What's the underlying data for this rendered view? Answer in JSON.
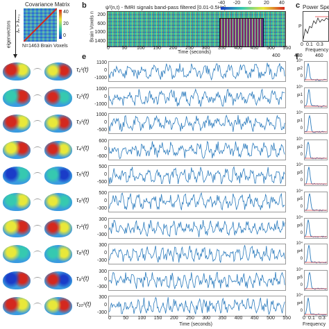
{
  "panels": {
    "b": "b",
    "c": "c",
    "e": "e",
    "f": "f"
  },
  "covariance": {
    "title": "Covariance Matrix",
    "footer": "N=1463 Brain Voxels",
    "colorbar_ticks": [
      "40",
      "20",
      "0"
    ],
    "eig_label": "eigenvectors",
    "lambda_label": "λₙ > λₙ₊₁"
  },
  "heatmap": {
    "title": "ψᶠ(n,t) - fMRI signals band-pass filtered [0.01-0.5Hz]",
    "ylabel": "Brain Voxels n",
    "yticks": [
      "200",
      "600",
      "1000",
      "1400"
    ],
    "xticks": [
      "0",
      "50",
      "100",
      "150",
      "200",
      "250",
      "300",
      "350",
      "400",
      "450",
      "500",
      "550"
    ],
    "xlabel": "Time (seconds)",
    "colorbar_ticks": [
      "-40",
      "-20",
      "0",
      "20",
      "40"
    ],
    "inset_xticks": [
      "400",
      "430",
      "460"
    ]
  },
  "power": {
    "title": "Power Spe",
    "axis_label": "P",
    "xlabel": "Frequency",
    "xticks": [
      "0",
      "0.1",
      "0.3"
    ],
    "bottom_xticks": [
      "0",
      "0.1",
      "0.3"
    ],
    "bottom_xlabel": "Frequency"
  },
  "components": {
    "xlabel": "Time (seconds)",
    "xticks": [
      "0",
      "50",
      "100",
      "150",
      "200",
      "250",
      "300",
      "350",
      "400",
      "450",
      "500",
      "550"
    ],
    "rows": [
      {
        "label": "τ₁ˢ(t)",
        "ticks": [
          "1100",
          "0",
          "-1000"
        ],
        "power_ticks": [
          "10⁵",
          "2",
          "0"
        ]
      },
      {
        "label": "τ₂ˢ(t)",
        "ticks": [
          "1000",
          "0",
          "-1000"
        ],
        "power_ticks": [
          "10⁵",
          "1",
          "0"
        ]
      },
      {
        "label": "τ₃ˢ(t)",
        "ticks": [
          "1000",
          "0",
          "-500"
        ],
        "power_ticks": [
          "10⁵",
          "1",
          "0"
        ]
      },
      {
        "label": "τ₄ˢ(t)",
        "ticks": [
          "600",
          "0",
          "-600"
        ],
        "power_ticks": [
          "10⁵",
          "2",
          "0"
        ]
      },
      {
        "label": "τ₅ˢ(t)",
        "ticks": [
          "500",
          "0",
          "-500"
        ],
        "power_ticks": [
          "10⁴",
          "5",
          "0"
        ]
      },
      {
        "label": "τ₆ˢ(t)",
        "ticks": [
          "500",
          "0",
          "-300"
        ],
        "power_ticks": [
          "10⁴",
          "5",
          "0"
        ]
      },
      {
        "label": "τ₇ˢ(t)",
        "ticks": [
          "300",
          "0",
          "-300"
        ],
        "power_ticks": [
          "10⁴",
          "5",
          "0"
        ]
      },
      {
        "label": "τ₈ˢ(t)",
        "ticks": [
          "300",
          "0",
          "-300"
        ],
        "power_ticks": [
          "10⁴",
          "4",
          "0"
        ]
      },
      {
        "label": "τ₉ˢ(t)",
        "ticks": [
          "300",
          "0",
          "-300"
        ],
        "power_ticks": [
          "10⁴",
          "5",
          "0"
        ]
      },
      {
        "label": "τ₁₀ˢ(t)",
        "ticks": [
          "300",
          "0",
          "-300"
        ],
        "power_ticks": [
          "10⁴",
          "4",
          "0"
        ]
      }
    ]
  },
  "colors": {
    "trace": "#2b7bbd",
    "power_line": "#2b7bbd",
    "power_red": "#e03a3a",
    "cmap_low": "#1a3cc8",
    "cmap_mid": "#36c9b0",
    "cmap_high": "#e8e83a",
    "cmap_top": "#d4281e"
  }
}
